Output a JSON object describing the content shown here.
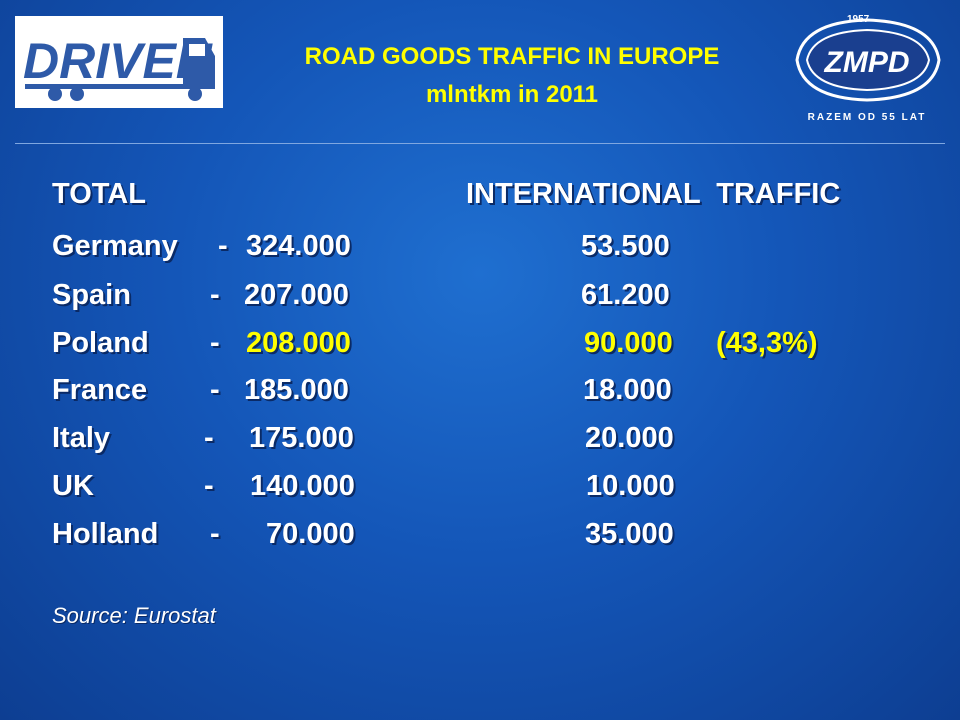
{
  "logos": {
    "left_logo_text": "DRIVEN",
    "right_logo_year": "1957",
    "right_logo_name": "ZMPD",
    "right_logo_tagline": "RAZEM OD 55 LAT"
  },
  "title": {
    "line1": "ROAD GOODS TRAFFIC IN EUROPE",
    "line2": "mlntkm in 2011"
  },
  "headers": {
    "total": "TOTAL",
    "international": "INTERNATIONAL  TRAFFIC"
  },
  "rows": [
    {
      "country": "Germany",
      "dash": "-",
      "total": "324.000",
      "international": "53.500",
      "note": ""
    },
    {
      "country": "Spain",
      "dash": "-",
      "total": "207.000",
      "international": "61.200",
      "note": ""
    },
    {
      "country": "Poland",
      "dash": "-",
      "total": "208.000",
      "international": "90.000",
      "note": "(43,3%)"
    },
    {
      "country": "France",
      "dash": "-",
      "total": "185.000",
      "international": "18.000",
      "note": ""
    },
    {
      "country": "Italy",
      "dash": "-",
      "total": "175.000",
      "international": "20.000",
      "note": ""
    },
    {
      "country": "UK",
      "dash": "-",
      "total": "140.000",
      "international": "10.000",
      "note": ""
    },
    {
      "country": "Holland",
      "dash": "-",
      "total": "70.000",
      "international": "35.000",
      "note": ""
    }
  ],
  "source": "Source: Eurostat",
  "colors": {
    "highlight": "#ffff00",
    "text": "#ffffff",
    "background": "#1456b8"
  }
}
